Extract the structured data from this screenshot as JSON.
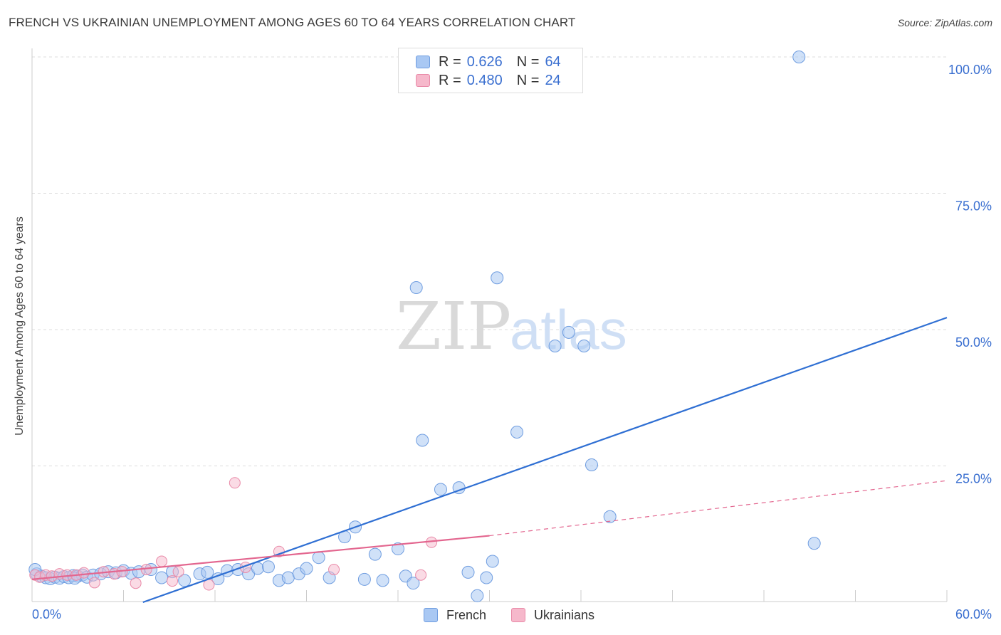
{
  "title": "FRENCH VS UKRAINIAN UNEMPLOYMENT AMONG AGES 60 TO 64 YEARS CORRELATION CHART",
  "source": "Source: ZipAtlas.com",
  "watermark": {
    "zip": "ZIP",
    "atlas": "atlas"
  },
  "colors": {
    "french_fill": "#a9c8f3",
    "french_stroke": "#6f9de0",
    "french_line": "#2f6fd3",
    "ukrainian_fill": "#f6b8cb",
    "ukrainian_stroke": "#e98aa8",
    "ukrainian_line": "#e3668f",
    "axis_label": "#3a6fd0"
  },
  "legend": {
    "french": {
      "r_label": "R =",
      "r_value": "0.626",
      "n_label": "N =",
      "n_value": "64"
    },
    "ukrainian": {
      "r_label": "R =",
      "r_value": "0.480",
      "n_label": "N =",
      "n_value": "24"
    }
  },
  "chart_data": {
    "type": "scatter",
    "title": "FRENCH VS UKRAINIAN UNEMPLOYMENT AMONG AGES 60 TO 64 YEARS CORRELATION CHART",
    "xlabel": "",
    "ylabel": "Unemployment Among Ages 60 to 64 years",
    "xlim": [
      0,
      60
    ],
    "ylim": [
      0,
      100
    ],
    "x_tick_labels": [
      "0.0%",
      "60.0%"
    ],
    "y_tick_labels": [
      "25.0%",
      "50.0%",
      "75.0%",
      "100.0%"
    ],
    "y_ticks": [
      25,
      50,
      75,
      100
    ],
    "x_ticks": [
      0,
      6,
      12,
      18,
      24,
      30,
      36,
      42,
      48,
      54,
      60
    ],
    "grid": true,
    "series": [
      {
        "name": "French",
        "points": [
          [
            0.3,
            5.2
          ],
          [
            0.6,
            4.8
          ],
          [
            0.9,
            4.5
          ],
          [
            1.2,
            4.3
          ],
          [
            1.5,
            4.6
          ],
          [
            1.8,
            4.4
          ],
          [
            2.1,
            4.7
          ],
          [
            2.4,
            4.5
          ],
          [
            2.7,
            4.9
          ],
          [
            3.0,
            4.8
          ],
          [
            3.3,
            5.0
          ],
          [
            3.6,
            4.6
          ],
          [
            4.0,
            5.0
          ],
          [
            4.5,
            5.2
          ],
          [
            5.0,
            5.6
          ],
          [
            5.5,
            5.4
          ],
          [
            6.0,
            5.8
          ],
          [
            6.5,
            5.3
          ],
          [
            7.0,
            5.6
          ],
          [
            7.8,
            6.0
          ],
          [
            8.5,
            4.5
          ],
          [
            9.2,
            5.6
          ],
          [
            10.0,
            4.0
          ],
          [
            11.0,
            5.2
          ],
          [
            11.5,
            5.5
          ],
          [
            12.2,
            4.3
          ],
          [
            12.8,
            5.8
          ],
          [
            13.5,
            6.0
          ],
          [
            14.2,
            5.2
          ],
          [
            14.8,
            6.2
          ],
          [
            15.5,
            6.5
          ],
          [
            16.2,
            4.0
          ],
          [
            16.8,
            4.5
          ],
          [
            17.5,
            5.2
          ],
          [
            18.0,
            6.2
          ],
          [
            18.8,
            8.2
          ],
          [
            19.5,
            4.5
          ],
          [
            20.5,
            12.0
          ],
          [
            21.2,
            13.8
          ],
          [
            21.8,
            4.2
          ],
          [
            22.5,
            8.8
          ],
          [
            23.0,
            4.0
          ],
          [
            24.0,
            9.8
          ],
          [
            24.5,
            4.8
          ],
          [
            25.0,
            3.5
          ],
          [
            25.2,
            57.7
          ],
          [
            25.6,
            29.7
          ],
          [
            26.8,
            20.7
          ],
          [
            28.0,
            21.0
          ],
          [
            28.6,
            5.5
          ],
          [
            29.2,
            1.2
          ],
          [
            29.8,
            4.5
          ],
          [
            30.2,
            7.5
          ],
          [
            30.5,
            59.5
          ],
          [
            31.8,
            31.2
          ],
          [
            34.3,
            47.0
          ],
          [
            35.2,
            49.5
          ],
          [
            36.2,
            47.0
          ],
          [
            36.7,
            25.2
          ],
          [
            37.9,
            15.7
          ],
          [
            50.3,
            100.0
          ],
          [
            51.3,
            10.8
          ],
          [
            0.2,
            6.0
          ],
          [
            2.8,
            4.4
          ]
        ]
      },
      {
        "name": "Ukrainians",
        "points": [
          [
            0.2,
            5.0
          ],
          [
            0.5,
            4.6
          ],
          [
            0.9,
            5.0
          ],
          [
            1.3,
            4.8
          ],
          [
            1.8,
            5.2
          ],
          [
            2.3,
            5.0
          ],
          [
            2.9,
            5.0
          ],
          [
            3.4,
            5.4
          ],
          [
            4.1,
            3.6
          ],
          [
            4.7,
            5.6
          ],
          [
            5.4,
            5.2
          ],
          [
            5.9,
            5.6
          ],
          [
            6.8,
            3.5
          ],
          [
            7.5,
            6.0
          ],
          [
            8.5,
            7.5
          ],
          [
            9.2,
            3.9
          ],
          [
            9.6,
            5.6
          ],
          [
            11.6,
            3.2
          ],
          [
            13.3,
            21.9
          ],
          [
            14.0,
            6.4
          ],
          [
            16.2,
            9.3
          ],
          [
            19.8,
            6.0
          ],
          [
            25.5,
            5.0
          ],
          [
            26.2,
            11.0
          ]
        ]
      }
    ],
    "trendlines": [
      {
        "series": "French",
        "from": [
          0,
          -7.2
        ],
        "to": [
          60,
          52.2
        ],
        "style": "solid"
      },
      {
        "series": "Ukrainians",
        "from": [
          0,
          4.2
        ],
        "to": [
          30,
          12.2
        ],
        "style": "solid"
      },
      {
        "series": "Ukrainians",
        "from": [
          30,
          12.2
        ],
        "to": [
          60,
          22.3
        ],
        "style": "dashed"
      }
    ]
  },
  "bottom_legend": {
    "french": "French",
    "ukrainians": "Ukrainians"
  }
}
